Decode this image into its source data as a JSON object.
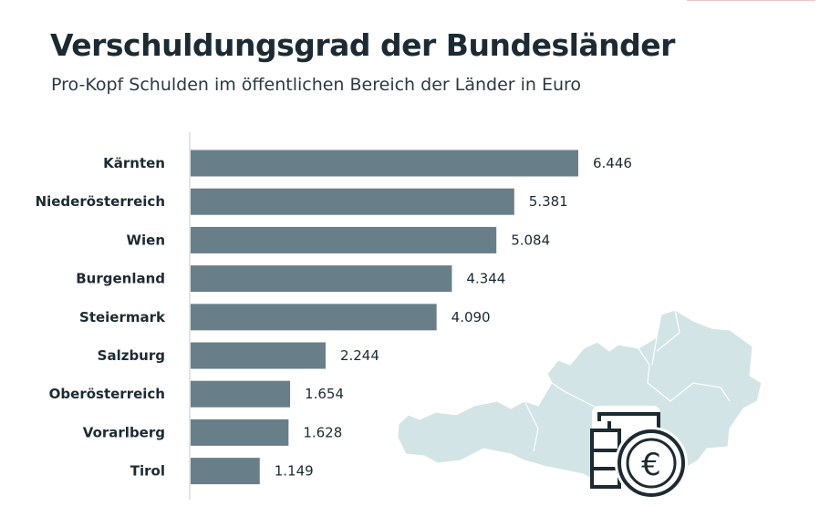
{
  "chart_data": {
    "type": "bar",
    "orientation": "horizontal",
    "title": "Verschuldungsgrad der Bundesländer",
    "subtitle": "Pro-Kopf Schulden im öffentlichen Bereich der Länder in Euro",
    "categories": [
      "Kärnten",
      "Niederösterreich",
      "Wien",
      "Burgenland",
      "Steiermark",
      "Salzburg",
      "Oberösterreich",
      "Vorarlberg",
      "Tirol"
    ],
    "values": [
      6446,
      5381,
      5084,
      4344,
      4090,
      2244,
      1654,
      1628,
      1149
    ],
    "value_labels": [
      "6.446",
      "5.381",
      "5.084",
      "4.344",
      "4.090",
      "2.244",
      "1.654",
      "1.628",
      "1.149"
    ],
    "xlim": [
      0,
      6446
    ],
    "grid": false,
    "bar_color": "#687f89",
    "map_color": "#d3e4e6",
    "icon_color": "#1c2b33",
    "icons": [
      "austria-map",
      "coin-stack-euro-icon"
    ]
  }
}
